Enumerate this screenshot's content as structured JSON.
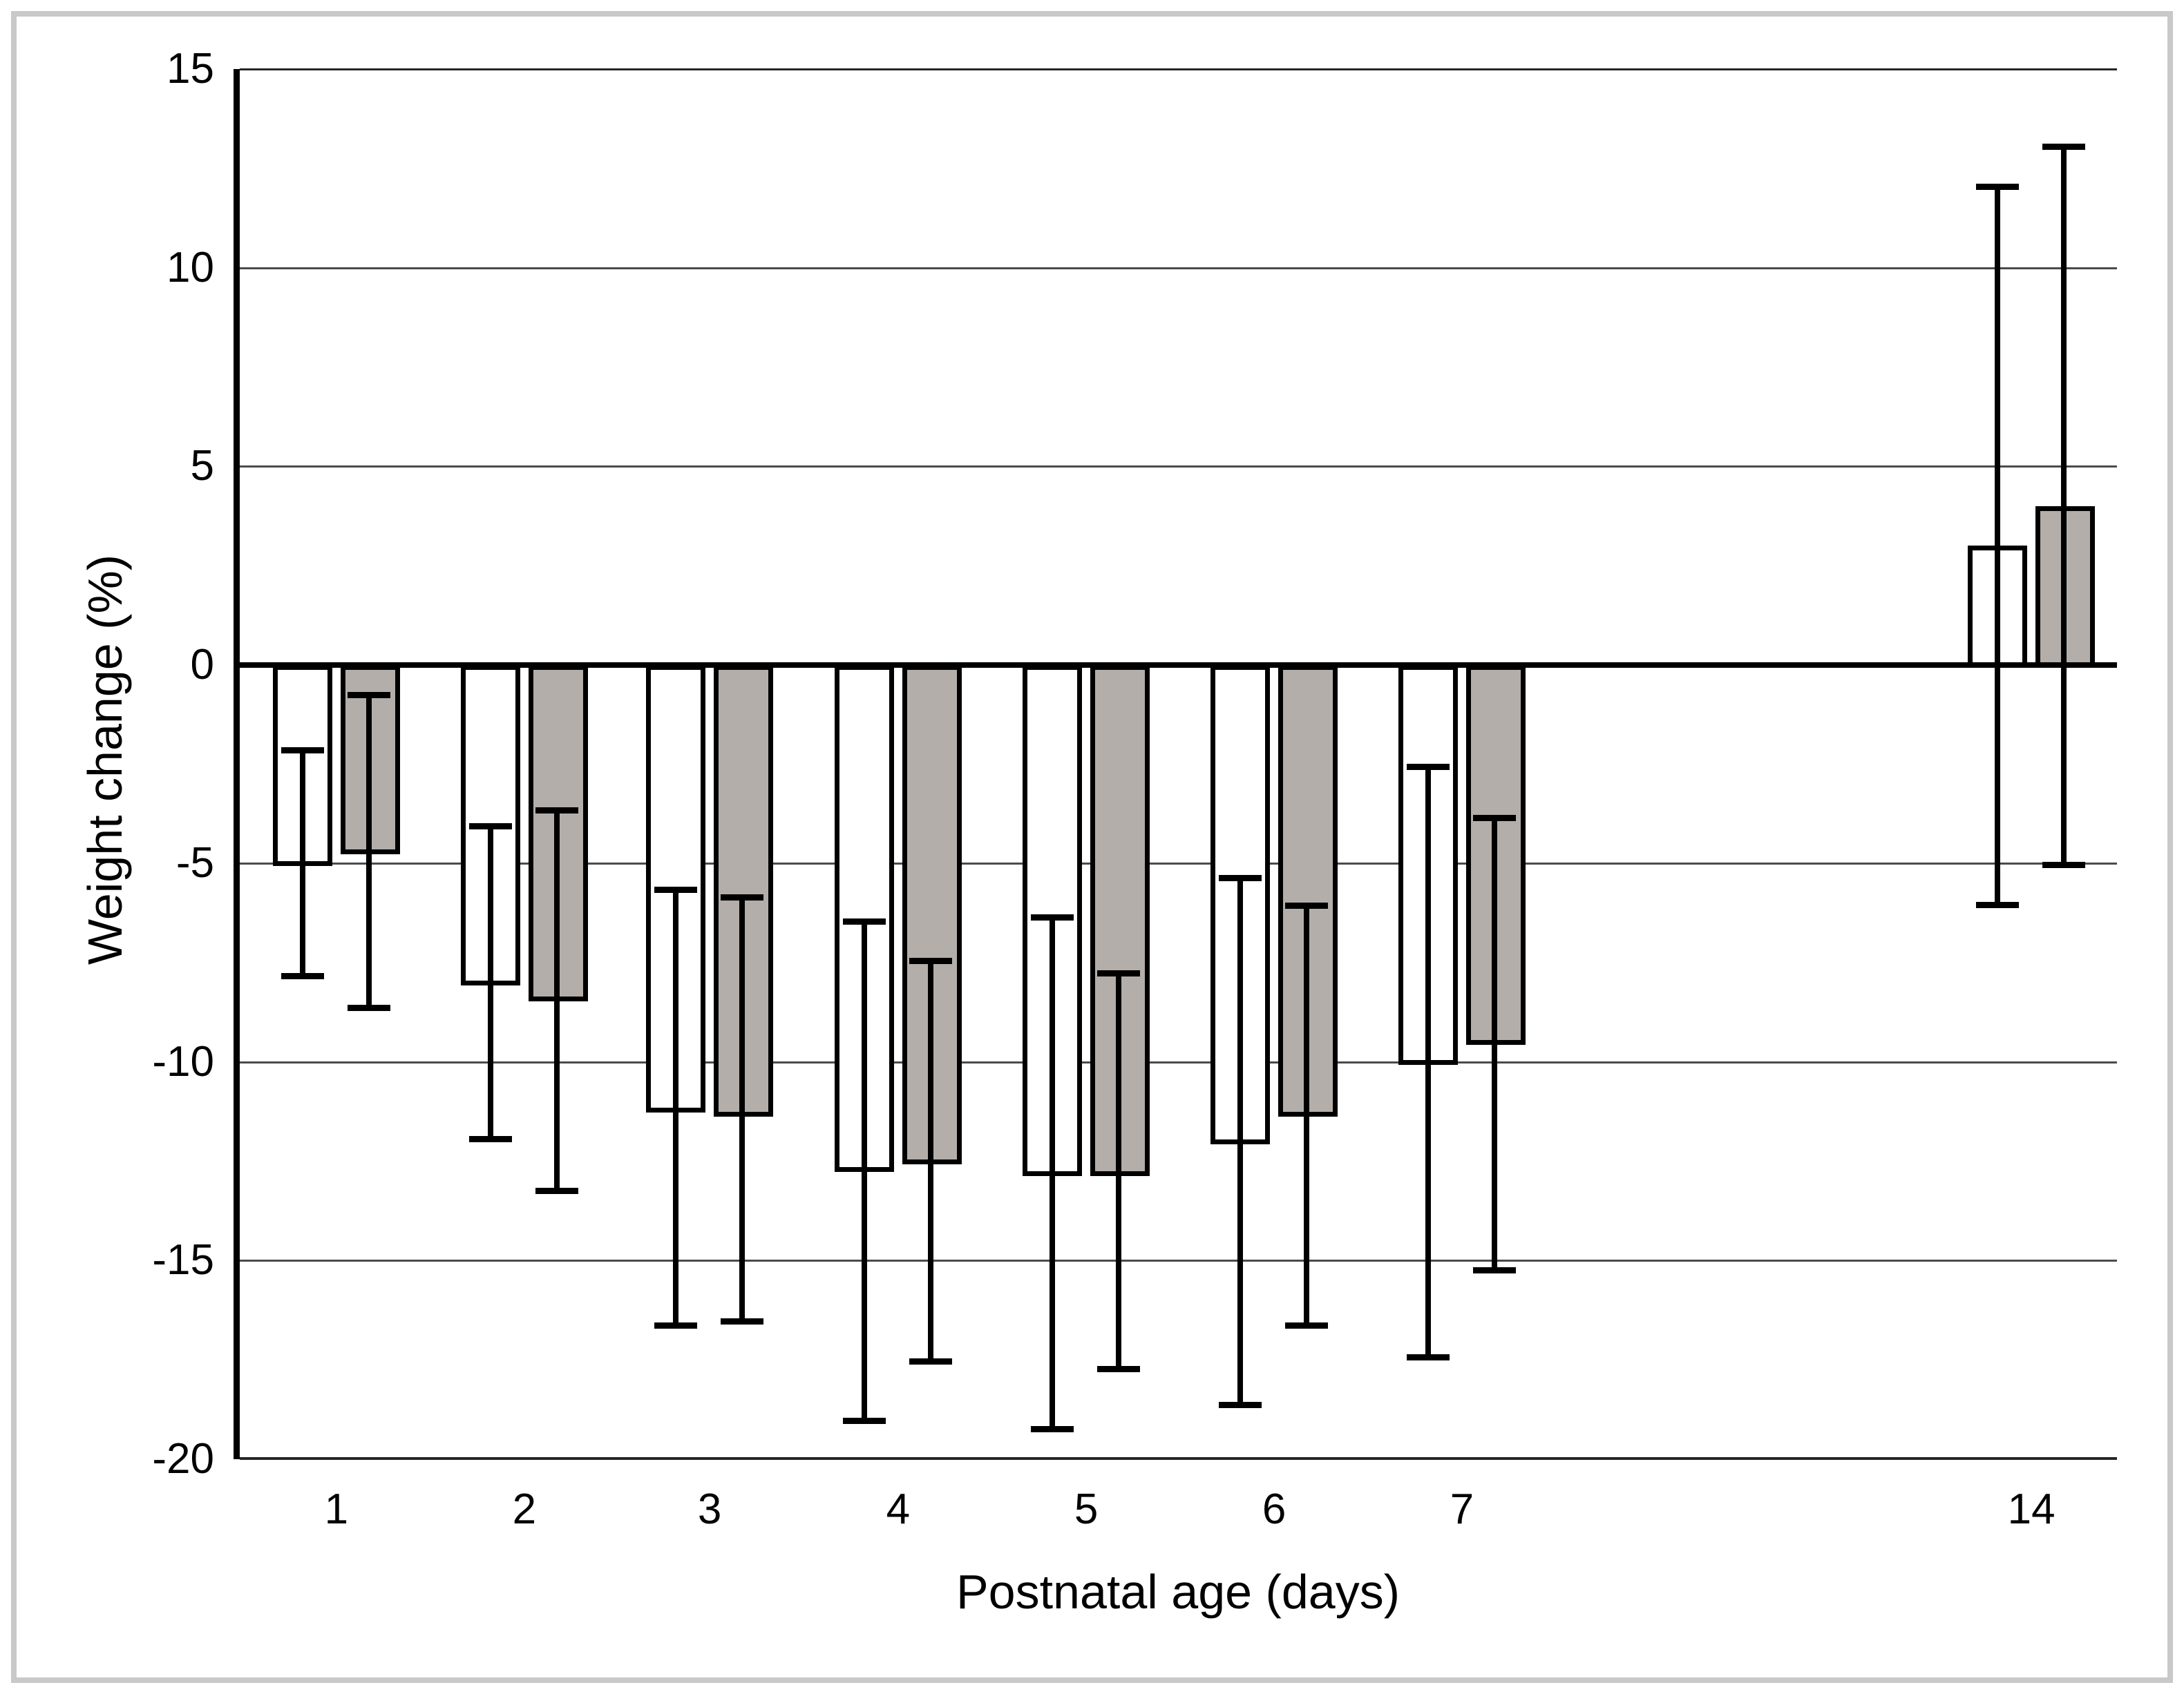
{
  "figure": {
    "background": "#ffffff",
    "frame_color": "#c9c9c9",
    "bar_outline_color": "#000000",
    "gray_fill_color": "#b4aeab"
  },
  "chart_data": {
    "type": "bar",
    "title": "",
    "xlabel": "Postnatal age (days)",
    "ylabel": "Weight change (%)",
    "ylim": [
      -20,
      15
    ],
    "yticks": [
      15,
      10,
      5,
      0,
      -5,
      -10,
      -15,
      -20
    ],
    "grid": true,
    "legend_position": "none",
    "error_bars": "both directions, capped",
    "categories": [
      "1",
      "2",
      "3",
      "4",
      "5",
      "6",
      "7",
      "14"
    ],
    "series": [
      {
        "name": "open-bars",
        "fill": "#ffffff",
        "stroke": "#000000",
        "values": [
          -5.0,
          -8.0,
          -11.2,
          -12.7,
          -12.8,
          -12.0,
          -10.0,
          3.0
        ],
        "error_high": [
          -2.1,
          -4.0,
          -5.6,
          -6.4,
          -6.3,
          -5.3,
          -2.5,
          12.1
        ],
        "error_low": [
          -7.9,
          -12.0,
          -16.7,
          -19.1,
          -19.3,
          -18.7,
          -17.5,
          -6.1
        ]
      },
      {
        "name": "gray-bars",
        "fill": "#b4aeab",
        "stroke": "#000000",
        "values": [
          -4.7,
          -8.4,
          -11.3,
          -12.5,
          -12.8,
          -11.3,
          -9.5,
          4.0
        ],
        "error_high": [
          -0.7,
          -3.6,
          -5.8,
          -7.4,
          -7.7,
          -6.0,
          -3.8,
          13.1
        ],
        "error_low": [
          -8.7,
          -13.3,
          -16.6,
          -17.6,
          -17.8,
          -16.7,
          -15.3,
          -5.1
        ]
      }
    ]
  }
}
